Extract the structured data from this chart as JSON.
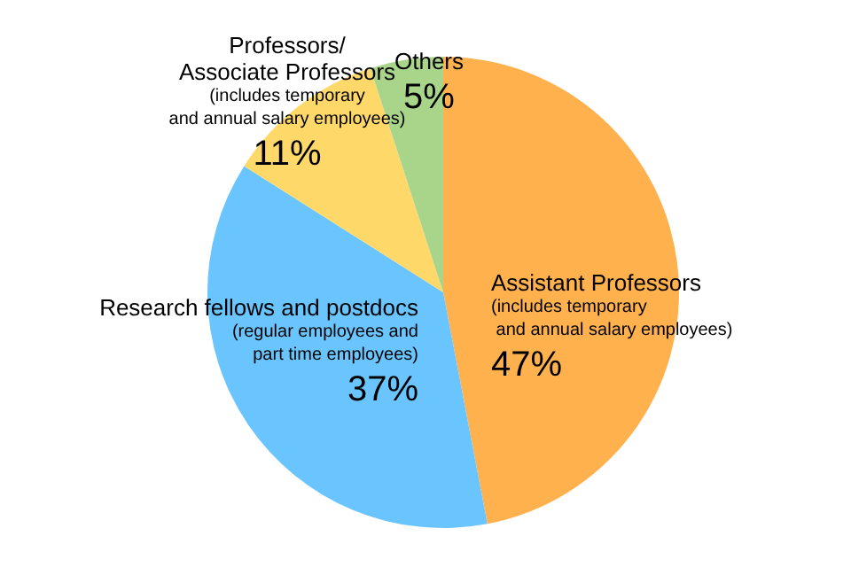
{
  "chart_data": {
    "type": "pie",
    "categories": [
      "Assistant Professors\n(includes temporary\n and annual salary employees)",
      "Research fellows and postdocs\n(regular employees and\npart time employees)",
      "Professors/\nAssociate Professors\n(includes temporary\nand annual salary employees)",
      "Others"
    ],
    "values": [
      47,
      37,
      11,
      5
    ],
    "colors": [
      "#ffb14e",
      "#6ac5fe",
      "#ffd86a",
      "#a9d58b"
    ],
    "value_labels": [
      "47%",
      "37%",
      "11%",
      "5%"
    ]
  }
}
